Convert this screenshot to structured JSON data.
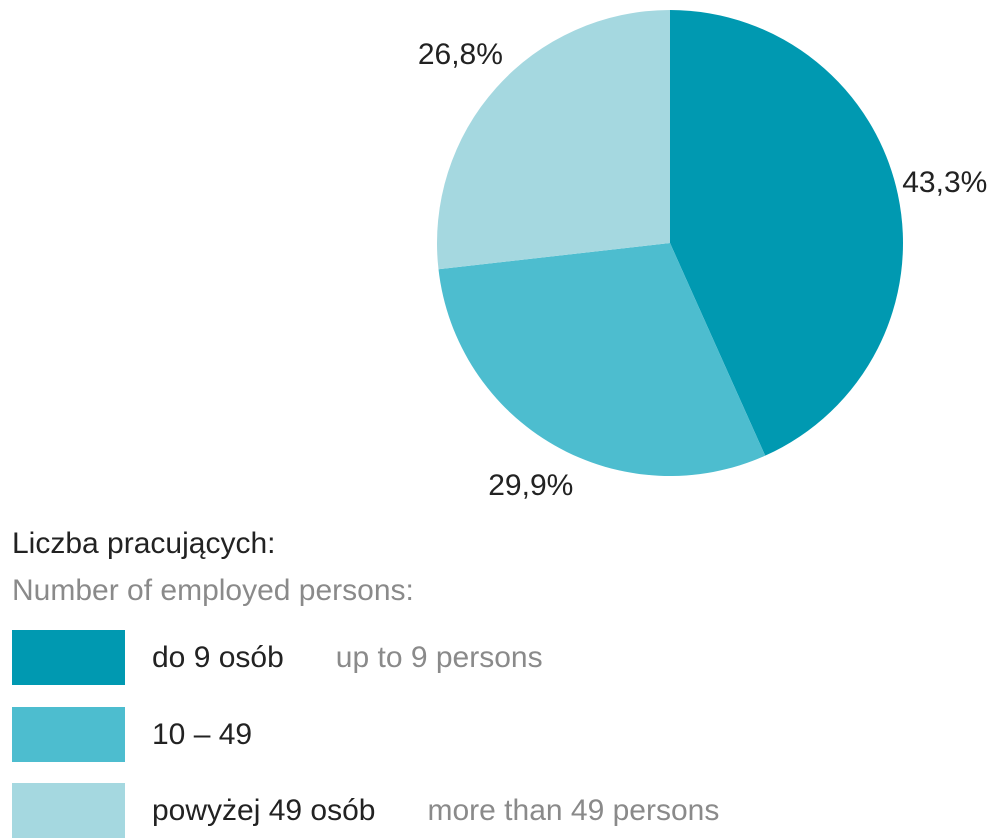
{
  "chart_data": {
    "type": "pie",
    "categories": [
      "do 9 osób",
      "10 – 49",
      "powyżej 49 osób"
    ],
    "category_translations": [
      "up to 9 persons",
      null,
      "more than 49 persons"
    ],
    "values": [
      43.3,
      29.9,
      26.8
    ],
    "value_labels": [
      "43,3%",
      "29,9%",
      "26,8%"
    ],
    "colors": [
      "#0099b1",
      "#4dbdcf",
      "#a5d8e0"
    ],
    "legend_title": "Liczba pracujących:",
    "legend_subtitle": "Number of employed persons:"
  }
}
